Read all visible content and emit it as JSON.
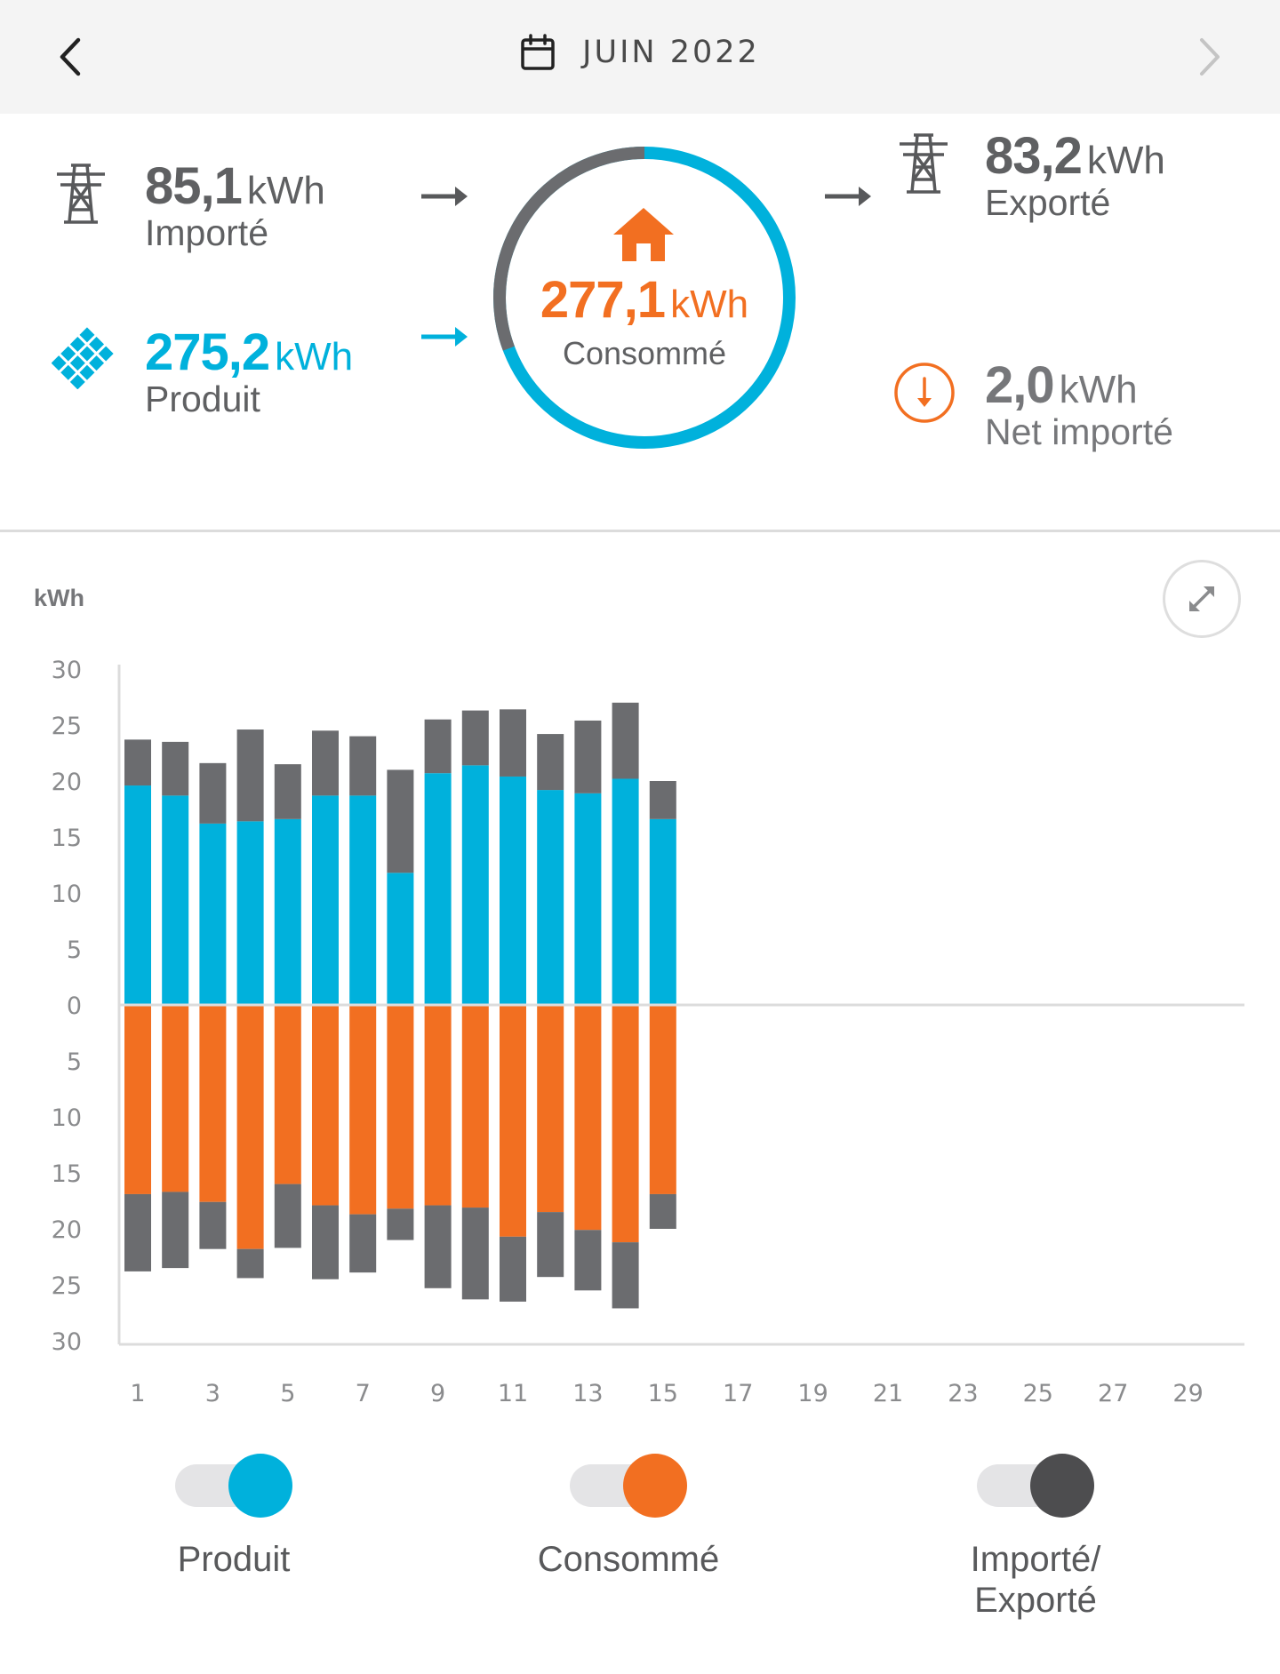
{
  "header": {
    "month": "JUIN 2022"
  },
  "summary": {
    "imported": {
      "value": "85,1",
      "unit": "kWh",
      "label": "Importé"
    },
    "produced": {
      "value": "275,2",
      "unit": "kWh",
      "label": "Produit"
    },
    "consumed": {
      "value": "277,1",
      "unit": "kWh",
      "label": "Consommé"
    },
    "exported": {
      "value": "83,2",
      "unit": "kWh",
      "label": "Exporté"
    },
    "net": {
      "value": "2,0",
      "unit": "kWh",
      "label": "Net importé"
    },
    "ring_import_fraction": 0.307
  },
  "colors": {
    "produced": "#00b1dc",
    "consumed": "#f26f21",
    "grid": "#6b6c6f",
    "text": "#58595b"
  },
  "chart": {
    "y_unit": "kWh"
  },
  "chart_data": {
    "type": "bar",
    "ylabel": "kWh",
    "ylim": [
      -30,
      30
    ],
    "y_ticks": [
      "30",
      "25",
      "20",
      "15",
      "10",
      "5",
      "0",
      "5",
      "10",
      "15",
      "20",
      "25",
      "30"
    ],
    "x_ticks": [
      "1",
      "3",
      "5",
      "7",
      "9",
      "11",
      "13",
      "15",
      "17",
      "19",
      "21",
      "23",
      "25",
      "27",
      "29"
    ],
    "days": [
      1,
      2,
      3,
      4,
      5,
      6,
      7,
      8,
      9,
      10,
      11,
      12,
      13,
      14,
      15
    ],
    "series": [
      {
        "name": "Produit",
        "values": [
          19.6,
          18.7,
          16.2,
          16.4,
          16.6,
          18.7,
          18.7,
          11.8,
          20.7,
          21.4,
          20.4,
          19.2,
          18.9,
          20.2,
          16.6
        ]
      },
      {
        "name": "Exporté",
        "values": [
          4.1,
          4.8,
          5.4,
          8.2,
          4.9,
          5.8,
          5.3,
          9.2,
          4.8,
          4.9,
          6.0,
          5.0,
          6.5,
          6.8,
          3.4
        ]
      },
      {
        "name": "Consommé",
        "values": [
          16.9,
          16.7,
          17.6,
          21.8,
          16.0,
          17.9,
          18.7,
          18.2,
          17.9,
          18.1,
          20.7,
          18.5,
          20.1,
          21.2,
          16.9
        ]
      },
      {
        "name": "Importé",
        "values": [
          6.9,
          6.8,
          4.2,
          2.6,
          5.7,
          6.6,
          5.2,
          2.8,
          7.4,
          8.2,
          5.8,
          5.8,
          5.4,
          5.9,
          3.1
        ]
      }
    ],
    "grid": false,
    "legend": "bottom"
  },
  "legend": {
    "produced": "Produit",
    "consumed": "Consommé",
    "grid_line1": "Importé/",
    "grid_line2": "Exporté"
  }
}
